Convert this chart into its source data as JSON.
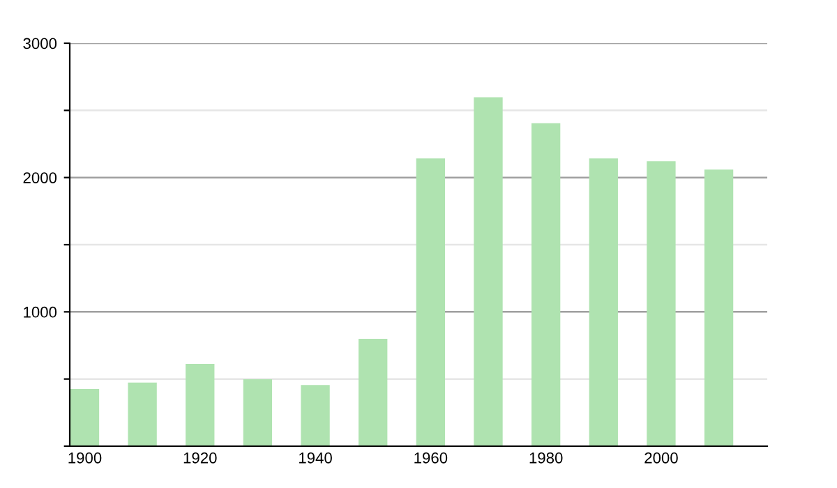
{
  "chart_data": {
    "type": "bar",
    "x": [
      1900,
      1910,
      1920,
      1930,
      1940,
      1950,
      1960,
      1970,
      1980,
      1990,
      2000,
      2010
    ],
    "values": [
      425,
      474,
      612,
      498,
      456,
      799,
      2142,
      2598,
      2404,
      2142,
      2121,
      2059
    ],
    "color": "#afe3b0",
    "xlim": [
      1897.4,
      2018.4
    ],
    "xticks": [
      1900,
      1920,
      1940,
      1960,
      1980,
      2000
    ],
    "ylim": [
      0,
      3000
    ],
    "yticks": [
      {
        "value": 0,
        "label": null
      },
      {
        "value": 500,
        "label": null
      },
      1000,
      {
        "value": 1500,
        "label": null
      },
      2000,
      {
        "value": 2500,
        "label": null
      },
      3000
    ],
    "grid": "y",
    "legend": false
  }
}
